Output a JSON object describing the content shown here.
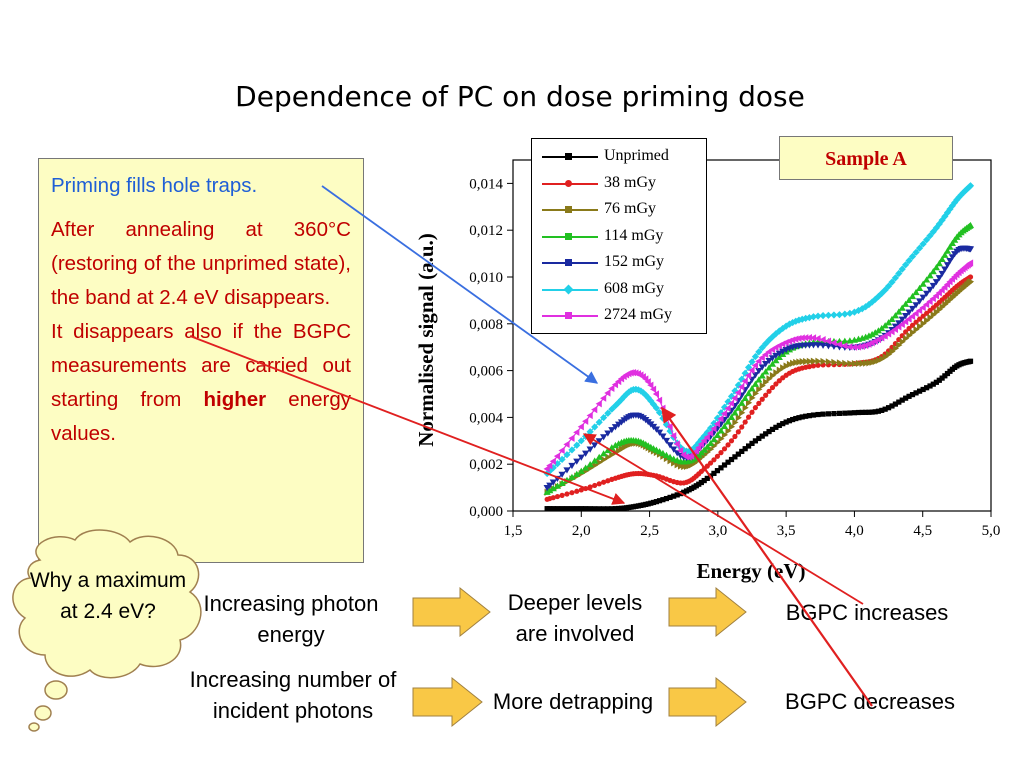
{
  "slide": {
    "title": "Dependence of PC on dose priming dose",
    "textbox": {
      "line1": "Priming fills hole traps.",
      "para2": "After annealing at 360°C (restoring of the unprimed state), the band at 2.4 eV disappears.",
      "para3_a": "It disappears also if the BGPC measurements are carried out starting from ",
      "para3_bold": "higher",
      "para3_b": " energy values."
    },
    "sample_tag": "Sample A",
    "bubble": "Why a maximum at 2.4 eV?",
    "flow": {
      "row1_left": "Increasing photon energy",
      "row1_mid": "Deeper levels are involved",
      "row1_right": "BGPC increases",
      "row2_left": "Increasing number of incident photons",
      "row2_mid": "More detrapping",
      "row2_right": "BGPC decreases"
    },
    "colors": {
      "arrow_fill": "#f9c846",
      "arrow_stroke": "#a08040",
      "callout_blue": "#3a6fe0",
      "callout_red": "#e02020"
    }
  },
  "chart_data": {
    "type": "line",
    "xlabel": "Energy (eV)",
    "ylabel": "Normalised signal (a.u.)",
    "xlim": [
      1.5,
      5.0
    ],
    "ylim": [
      0.0,
      0.015
    ],
    "xticks": [
      "1,5",
      "2,0",
      "2,5",
      "3,0",
      "3,5",
      "4,0",
      "4,5",
      "5,0"
    ],
    "xtick_values": [
      1.5,
      2.0,
      2.5,
      3.0,
      3.5,
      4.0,
      4.5,
      5.0
    ],
    "yticks": [
      "0,000",
      "0,002",
      "0,004",
      "0,006",
      "0,008",
      "0,010",
      "0,012",
      "0,014"
    ],
    "ytick_values": [
      0.0,
      0.002,
      0.004,
      0.006,
      0.008,
      0.01,
      0.012,
      0.014
    ],
    "legend_position": "top-left",
    "x": [
      1.75,
      2.0,
      2.25,
      2.4,
      2.55,
      2.75,
      2.9,
      3.1,
      3.3,
      3.5,
      3.7,
      4.0,
      4.2,
      4.4,
      4.6,
      4.75,
      4.85
    ],
    "series": [
      {
        "name": "Unprimed",
        "color": "#000000",
        "marker": "square",
        "values": [
          0.0001,
          0.0001,
          0.0001,
          0.0002,
          0.0004,
          0.0008,
          0.0013,
          0.0022,
          0.0031,
          0.0038,
          0.0041,
          0.0042,
          0.0043,
          0.0049,
          0.0055,
          0.0062,
          0.0064
        ]
      },
      {
        "name": "38 mGy",
        "color": "#e02020",
        "marker": "circle",
        "values": [
          0.0005,
          0.0009,
          0.0014,
          0.0016,
          0.0015,
          0.0012,
          0.0018,
          0.003,
          0.0046,
          0.0058,
          0.0062,
          0.0063,
          0.0066,
          0.0078,
          0.0088,
          0.0096,
          0.01
        ]
      },
      {
        "name": "76 mGy",
        "color": "#8a7a1a",
        "marker": "triangle-right",
        "values": [
          0.0008,
          0.0016,
          0.0025,
          0.0029,
          0.0025,
          0.0019,
          0.0024,
          0.0036,
          0.0052,
          0.0062,
          0.0064,
          0.0063,
          0.0065,
          0.0075,
          0.0085,
          0.0093,
          0.0098
        ]
      },
      {
        "name": "114 mGy",
        "color": "#22c022",
        "marker": "triangle-up",
        "values": [
          0.0008,
          0.0017,
          0.0028,
          0.003,
          0.0026,
          0.0021,
          0.0026,
          0.004,
          0.0056,
          0.0068,
          0.0072,
          0.0073,
          0.0078,
          0.009,
          0.0104,
          0.0117,
          0.0122
        ]
      },
      {
        "name": "152 mGy",
        "color": "#1a2aa0",
        "marker": "triangle-down",
        "values": [
          0.001,
          0.0023,
          0.0036,
          0.0041,
          0.0035,
          0.0023,
          0.0029,
          0.0043,
          0.006,
          0.0069,
          0.0071,
          0.007,
          0.0074,
          0.0085,
          0.0098,
          0.0111,
          0.0112
        ]
      },
      {
        "name": "608 mGy",
        "color": "#22d0e8",
        "marker": "diamond",
        "values": [
          0.0016,
          0.003,
          0.0045,
          0.0052,
          0.0044,
          0.0026,
          0.0032,
          0.0049,
          0.0068,
          0.0079,
          0.0083,
          0.0085,
          0.0093,
          0.0107,
          0.0121,
          0.0133,
          0.0139
        ]
      },
      {
        "name": "2724 mGy",
        "color": "#e030e0",
        "marker": "triangle-left",
        "values": [
          0.0018,
          0.0036,
          0.0054,
          0.0059,
          0.005,
          0.0024,
          0.003,
          0.0046,
          0.0064,
          0.0072,
          0.0074,
          0.007,
          0.0074,
          0.0082,
          0.0092,
          0.0101,
          0.0106
        ]
      }
    ]
  }
}
